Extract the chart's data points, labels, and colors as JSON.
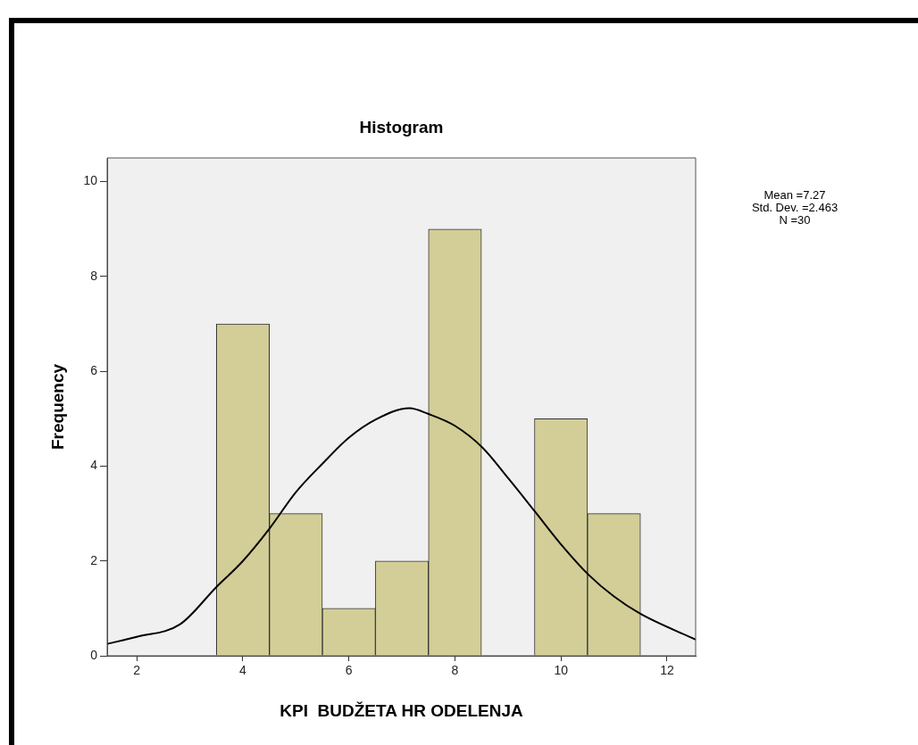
{
  "chart_data": {
    "type": "histogram",
    "title": "Histogram",
    "xlabel": "KPI  BUDŽETA HR ODELENJA",
    "ylabel": "Frequency",
    "series": [
      {
        "type": "histogram",
        "bins": [
          3.5,
          4.5,
          5.5,
          6.5,
          7.5,
          8.5,
          9.5,
          10.5,
          11.5
        ],
        "values": [
          7,
          3,
          1,
          2,
          9,
          0,
          5,
          3
        ],
        "color": "#d3ce97"
      },
      {
        "type": "line",
        "x": [
          1.44,
          2.0,
          2.81,
          3.5,
          4.0,
          4.5,
          5.0,
          5.5,
          6.0,
          6.5,
          7.14,
          7.5,
          8.0,
          8.52,
          9.0,
          9.51,
          10.0,
          10.51,
          11.0,
          11.49,
          12.54
        ],
        "values": [
          0.25,
          0.4,
          0.66,
          1.45,
          2.0,
          2.68,
          3.45,
          4.05,
          4.6,
          4.98,
          5.22,
          5.1,
          4.85,
          4.39,
          3.75,
          3.04,
          2.35,
          1.72,
          1.25,
          0.89,
          0.34
        ],
        "color": "#000000"
      }
    ],
    "xlim": [
      1.44,
      12.54
    ],
    "xticks": [
      2,
      4,
      6,
      8,
      10,
      12
    ],
    "ylim": [
      0,
      10.5
    ],
    "yticks": [
      0,
      2,
      4,
      6,
      8,
      10
    ],
    "grid": false,
    "legend": false,
    "marker": "none",
    "annotations": [
      "Mean =7.27",
      "Std. Dev. =2.463",
      "N =30"
    ]
  }
}
